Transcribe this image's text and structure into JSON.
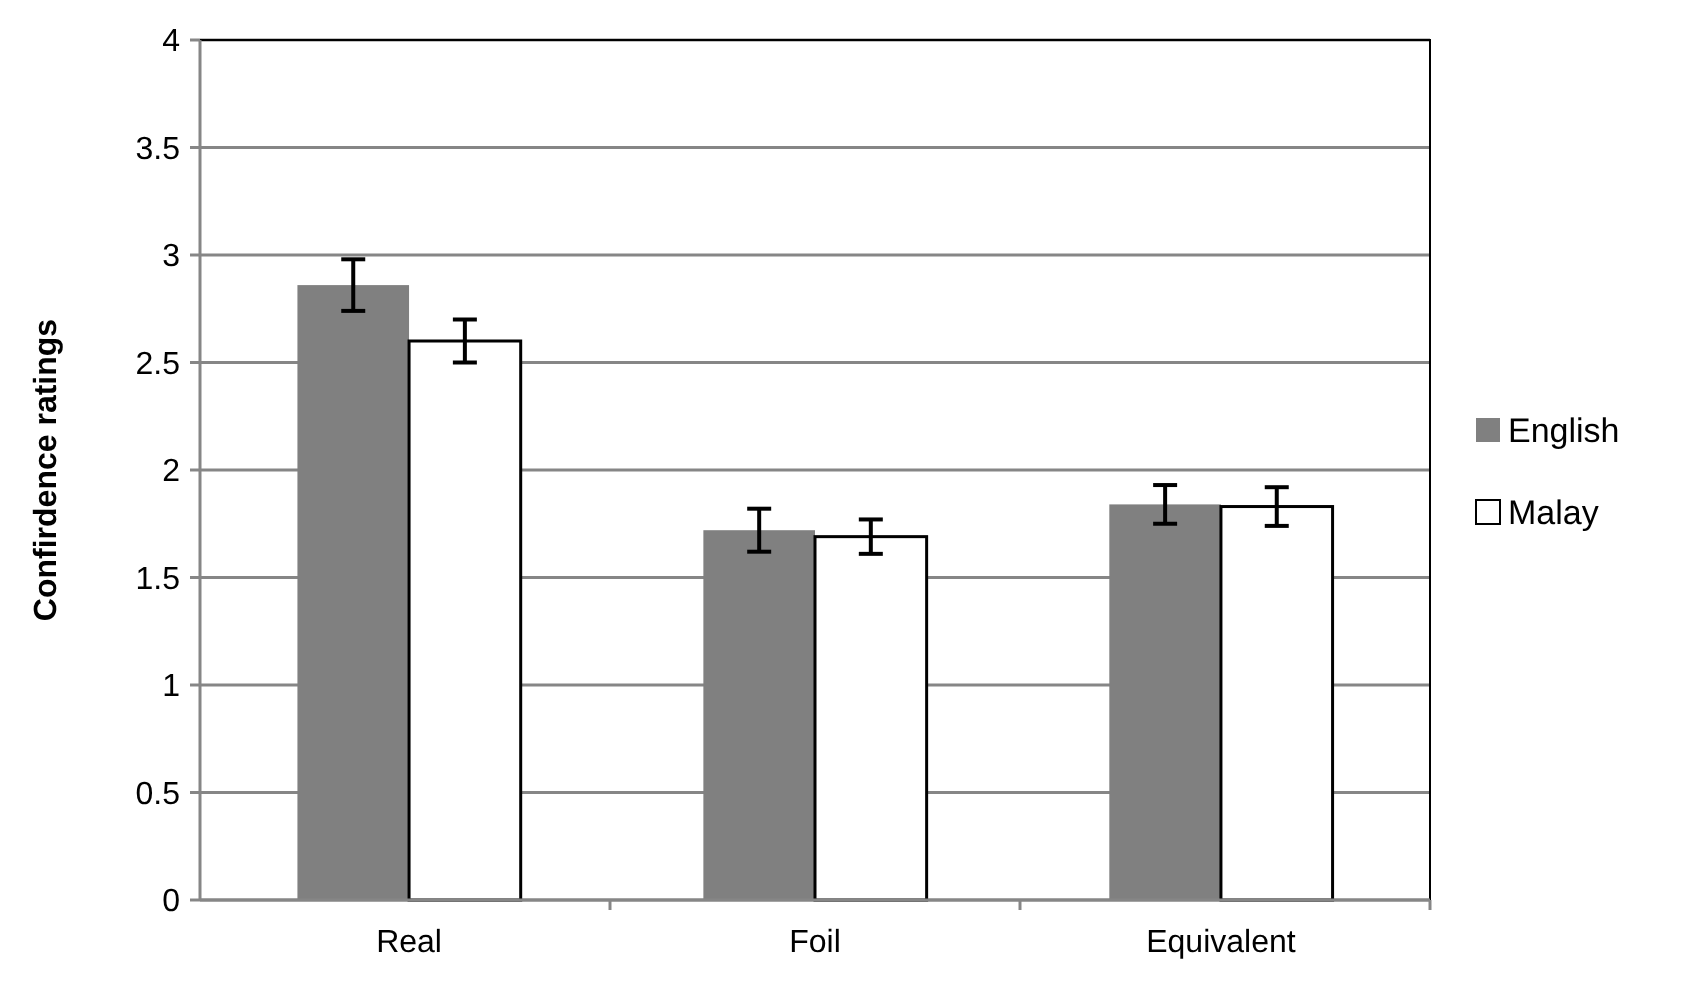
{
  "chart_data": {
    "type": "bar",
    "ylabel": "Confirdence ratings",
    "categories": [
      "Real",
      "Foil",
      "Equivalent"
    ],
    "series": [
      {
        "name": "English",
        "color": "#808080",
        "values": [
          2.86,
          1.72,
          1.84
        ],
        "errors": [
          0.12,
          0.1,
          0.09
        ]
      },
      {
        "name": "Malay",
        "color": "#ffffff",
        "values": [
          2.6,
          1.69,
          1.83
        ],
        "errors": [
          0.1,
          0.08,
          0.09
        ]
      }
    ],
    "ylim": [
      0,
      4
    ],
    "yticks": [
      0,
      0.5,
      1,
      1.5,
      2,
      2.5,
      3,
      3.5,
      4
    ],
    "grid": "y",
    "legend": "right"
  }
}
